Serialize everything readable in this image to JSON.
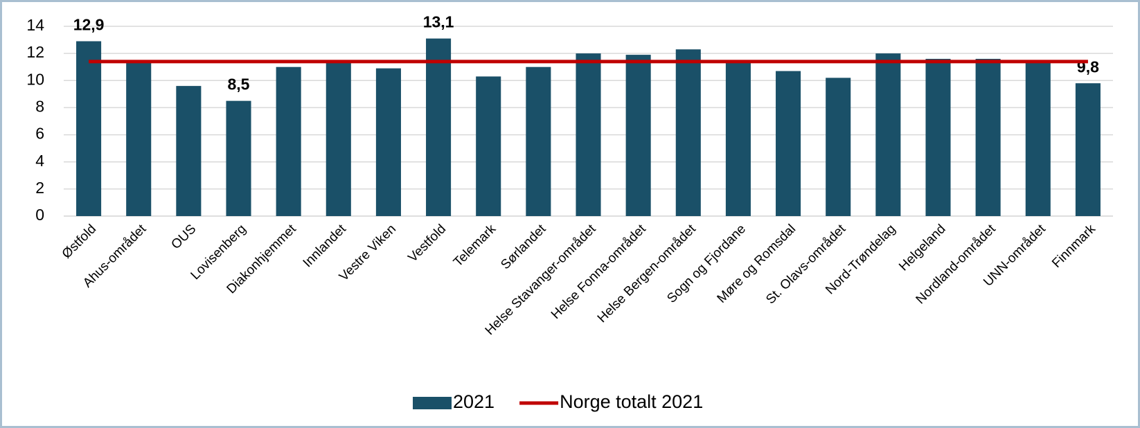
{
  "chart_data": {
    "type": "bar",
    "categories": [
      "Østfold",
      "Ahus-området",
      "OUS",
      "Lovisenberg",
      "Diakonhjemmet",
      "Innlandet",
      "Vestre Viken",
      "Vestfold",
      "Telemark",
      "Sørlandet",
      "Helse Stavanger-området",
      "Helse Fonna-området",
      "Helse Bergen-området",
      "Sogn og Fjordane",
      "Møre og Romsdal",
      "St. Olavs-området",
      "Nord-Trøndelag",
      "Helgeland",
      "Nordland-området",
      "UNN-området",
      "Finnmark"
    ],
    "series": [
      {
        "name": "2021",
        "type": "bar",
        "color": "#1a5068",
        "values": [
          12.9,
          11.4,
          9.6,
          8.5,
          11.0,
          11.4,
          10.9,
          13.1,
          10.3,
          11.0,
          12.0,
          11.9,
          12.3,
          11.4,
          10.7,
          10.2,
          12.0,
          11.6,
          11.6,
          11.4,
          9.8
        ],
        "value_labels": [
          "12,9",
          null,
          null,
          "8,5",
          null,
          null,
          null,
          "13,1",
          null,
          null,
          null,
          null,
          null,
          null,
          null,
          null,
          null,
          null,
          null,
          null,
          "9,8"
        ]
      },
      {
        "name": "Norge totalt 2021",
        "type": "line",
        "color": "#c00000",
        "values": [
          11.4,
          11.4,
          11.4,
          11.4,
          11.4,
          11.4,
          11.4,
          11.4,
          11.4,
          11.4,
          11.4,
          11.4,
          11.4,
          11.4,
          11.4,
          11.4,
          11.4,
          11.4,
          11.4,
          11.4,
          11.4
        ]
      }
    ],
    "ylim": [
      0,
      14
    ],
    "yticks": [
      0,
      2,
      4,
      6,
      8,
      10,
      12,
      14
    ],
    "grid": true,
    "legend": "bottom"
  }
}
